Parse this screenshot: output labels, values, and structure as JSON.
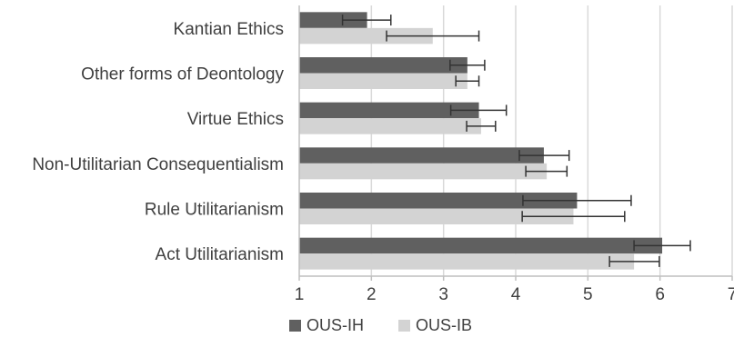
{
  "chart_data": {
    "type": "bar",
    "orientation": "horizontal",
    "categories": [
      "Kantian Ethics",
      "Other forms of Deontology",
      "Virtue Ethics",
      "Non-Utilitarian Consequentialism",
      "Rule Utilitarianism",
      "Act Utilitarianism"
    ],
    "series": [
      {
        "name": "OUS-IH",
        "color": "#606060",
        "values": [
          1.94,
          3.33,
          3.49,
          4.39,
          4.85,
          6.03
        ],
        "error_low": [
          1.6,
          3.09,
          3.1,
          4.05,
          4.1,
          5.64
        ],
        "error_high": [
          2.27,
          3.57,
          3.87,
          4.74,
          5.6,
          6.42
        ]
      },
      {
        "name": "OUS-IB",
        "color": "#d3d3d3",
        "values": [
          2.85,
          3.33,
          3.52,
          4.43,
          4.8,
          5.64
        ],
        "error_low": [
          2.21,
          3.17,
          3.32,
          4.14,
          4.09,
          5.3
        ],
        "error_high": [
          3.49,
          3.49,
          3.72,
          4.71,
          5.51,
          5.99
        ]
      }
    ],
    "xlim": [
      1,
      7
    ],
    "xticks": [
      "1",
      "2",
      "3",
      "4",
      "5",
      "6",
      "7"
    ],
    "grid": true,
    "legend_position": "bottom"
  }
}
